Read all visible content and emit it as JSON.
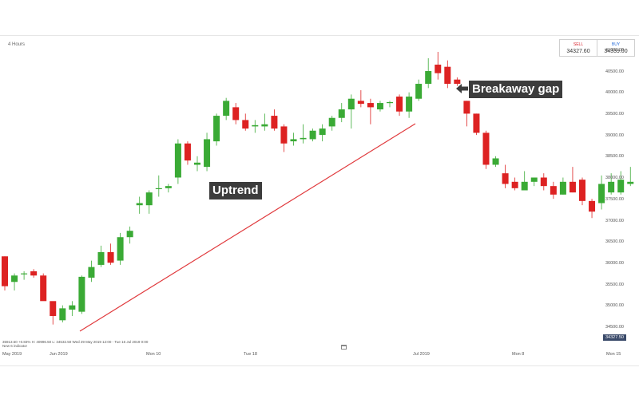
{
  "interval_label": "4 Hours",
  "quote": {
    "sell_label": "SELL",
    "sell_value": "34327.60",
    "buy_label": "BUY",
    "buy_value": "34339.00"
  },
  "annotations": {
    "uptrend": "Uptrend",
    "breakaway": "Breakaway gap"
  },
  "colors": {
    "up": "#3aaa35",
    "down": "#dd2222",
    "trendline": "#e0393c",
    "label_bg": "#3c3c3c"
  },
  "icons": [
    "arrow-left-icon",
    "calendar-icon"
  ],
  "current_price": "34327.50",
  "ohlc_line1": "35913.50    +0.83%    H: 40996.50    L: 34532.50    Wed 29 May 2019 12:00 - Tue 16 Jul 2019 0:00",
  "ohlc_line2": "New 6 indicator",
  "date_ticks": [
    "May 2019",
    "Jun 2019",
    "Mon 10",
    "Tue 18",
    "Jul 2019",
    "Mon 8",
    "Mon 15"
  ],
  "chart_data": {
    "type": "candlestick",
    "title": "",
    "xlabel": "",
    "ylabel": "",
    "ylim": [
      34300,
      41200
    ],
    "grid": false,
    "y_ticks": [
      34500,
      35000,
      35500,
      36000,
      36500,
      37000,
      37500,
      38000,
      38500,
      39000,
      39500,
      40000,
      40500,
      41000
    ],
    "y_tick_labels": [
      "34500.00",
      "35000.00",
      "35500.00",
      "36000.00",
      "36500.00",
      "37000.00",
      "37500.00",
      "38000.00",
      "38500.00",
      "39000.00",
      "39500.00",
      "40000.00",
      "40500.00",
      "41000.00"
    ],
    "candles": [
      {
        "o": 36200,
        "h": 36200,
        "l": 35400,
        "c": 35500
      },
      {
        "o": 35600,
        "h": 35800,
        "l": 35400,
        "c": 35750
      },
      {
        "o": 35780,
        "h": 35850,
        "l": 35650,
        "c": 35800
      },
      {
        "o": 35850,
        "h": 35900,
        "l": 35700,
        "c": 35750
      },
      {
        "o": 35750,
        "h": 35800,
        "l": 35200,
        "c": 35150
      },
      {
        "o": 35150,
        "h": 35100,
        "l": 34600,
        "c": 34800
      },
      {
        "o": 34700,
        "h": 35050,
        "l": 34650,
        "c": 34980
      },
      {
        "o": 34950,
        "h": 35150,
        "l": 34800,
        "c": 35050
      },
      {
        "o": 34900,
        "h": 35750,
        "l": 34850,
        "c": 35720
      },
      {
        "o": 35700,
        "h": 36100,
        "l": 35600,
        "c": 35950
      },
      {
        "o": 36000,
        "h": 36450,
        "l": 35950,
        "c": 36300
      },
      {
        "o": 36300,
        "h": 36500,
        "l": 36000,
        "c": 36050
      },
      {
        "o": 36100,
        "h": 36750,
        "l": 36000,
        "c": 36650
      },
      {
        "o": 36650,
        "h": 36900,
        "l": 36500,
        "c": 36800
      },
      {
        "o": 37400,
        "h": 37600,
        "l": 37200,
        "c": 37450
      },
      {
        "o": 37400,
        "h": 37750,
        "l": 37200,
        "c": 37700
      },
      {
        "o": 37800,
        "h": 38100,
        "l": 37600,
        "c": 37800
      },
      {
        "o": 37800,
        "h": 37900,
        "l": 37700,
        "c": 37850
      },
      {
        "o": 38050,
        "h": 38950,
        "l": 37900,
        "c": 38850
      },
      {
        "o": 38850,
        "h": 38900,
        "l": 38350,
        "c": 38450
      },
      {
        "o": 38350,
        "h": 38550,
        "l": 38200,
        "c": 38400
      },
      {
        "o": 38300,
        "h": 39100,
        "l": 38200,
        "c": 38950
      },
      {
        "o": 38900,
        "h": 39550,
        "l": 38800,
        "c": 39500
      },
      {
        "o": 39500,
        "h": 39920,
        "l": 39400,
        "c": 39850
      },
      {
        "o": 39700,
        "h": 39800,
        "l": 39300,
        "c": 39400
      },
      {
        "o": 39400,
        "h": 39550,
        "l": 39150,
        "c": 39200
      },
      {
        "o": 39250,
        "h": 39400,
        "l": 39100,
        "c": 39280
      },
      {
        "o": 39250,
        "h": 39550,
        "l": 39150,
        "c": 39300
      },
      {
        "o": 39500,
        "h": 39650,
        "l": 39150,
        "c": 39200
      },
      {
        "o": 39250,
        "h": 39300,
        "l": 38650,
        "c": 38850
      },
      {
        "o": 38900,
        "h": 39100,
        "l": 38800,
        "c": 38950
      },
      {
        "o": 38950,
        "h": 39300,
        "l": 38850,
        "c": 38980
      },
      {
        "o": 38950,
        "h": 39200,
        "l": 38900,
        "c": 39150
      },
      {
        "o": 39050,
        "h": 39300,
        "l": 38900,
        "c": 39200
      },
      {
        "o": 39250,
        "h": 39500,
        "l": 39150,
        "c": 39450
      },
      {
        "o": 39450,
        "h": 39800,
        "l": 39350,
        "c": 39650
      },
      {
        "o": 39650,
        "h": 40000,
        "l": 39200,
        "c": 39900
      },
      {
        "o": 39850,
        "h": 40100,
        "l": 39700,
        "c": 39780
      },
      {
        "o": 39800,
        "h": 39900,
        "l": 39300,
        "c": 39700
      },
      {
        "o": 39650,
        "h": 39850,
        "l": 39600,
        "c": 39800
      },
      {
        "o": 39800,
        "h": 39850,
        "l": 39700,
        "c": 39820
      },
      {
        "o": 39950,
        "h": 40000,
        "l": 39500,
        "c": 39600
      },
      {
        "o": 39600,
        "h": 40050,
        "l": 39450,
        "c": 39950
      },
      {
        "o": 39900,
        "h": 40350,
        "l": 39850,
        "c": 40250
      },
      {
        "o": 40250,
        "h": 40850,
        "l": 40150,
        "c": 40550
      },
      {
        "o": 40700,
        "h": 41000,
        "l": 40350,
        "c": 40500
      },
      {
        "o": 40650,
        "h": 40800,
        "l": 40150,
        "c": 40250
      },
      {
        "o": 40350,
        "h": 40400,
        "l": 40200,
        "c": 40250
      },
      {
        "o": 39850,
        "h": 39850,
        "l": 39250,
        "c": 39550
      },
      {
        "o": 39550,
        "h": 39550,
        "l": 39050,
        "c": 39100
      },
      {
        "o": 39100,
        "h": 39150,
        "l": 38250,
        "c": 38350
      },
      {
        "o": 38350,
        "h": 38550,
        "l": 38300,
        "c": 38500
      },
      {
        "o": 38150,
        "h": 38350,
        "l": 37800,
        "c": 37900
      },
      {
        "o": 37950,
        "h": 38050,
        "l": 37750,
        "c": 37800
      },
      {
        "o": 37750,
        "h": 38200,
        "l": 37750,
        "c": 37950
      },
      {
        "o": 37950,
        "h": 38050,
        "l": 37850,
        "c": 38050
      },
      {
        "o": 38050,
        "h": 38150,
        "l": 37750,
        "c": 37850
      },
      {
        "o": 37850,
        "h": 37950,
        "l": 37550,
        "c": 37650
      },
      {
        "o": 37650,
        "h": 38050,
        "l": 37650,
        "c": 37950
      },
      {
        "o": 37950,
        "h": 38300,
        "l": 37700,
        "c": 37700
      },
      {
        "o": 38000,
        "h": 38050,
        "l": 37400,
        "c": 37500
      },
      {
        "o": 37500,
        "h": 37550,
        "l": 37100,
        "c": 37250
      },
      {
        "o": 37450,
        "h": 38100,
        "l": 37300,
        "c": 37900
      },
      {
        "o": 37700,
        "h": 38150,
        "l": 37650,
        "c": 37950
      },
      {
        "o": 37700,
        "h": 38200,
        "l": 37650,
        "c": 38000
      },
      {
        "o": 37900,
        "h": 38300,
        "l": 37850,
        "c": 37950
      }
    ]
  }
}
